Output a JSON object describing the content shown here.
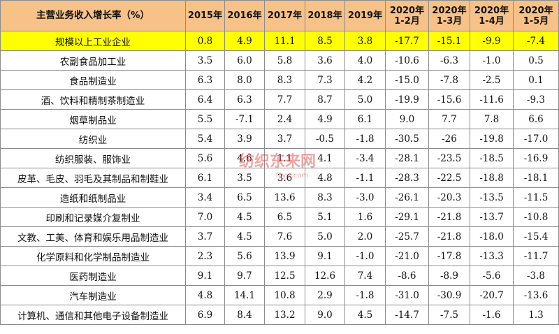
{
  "header": {
    "label": "主营业务收入增长率（%）",
    "columns": [
      {
        "line1": "2015年",
        "line2": ""
      },
      {
        "line1": "2016年",
        "line2": ""
      },
      {
        "line1": "2017年",
        "line2": ""
      },
      {
        "line1": "2018年",
        "line2": ""
      },
      {
        "line1": "2019年",
        "line2": ""
      },
      {
        "line1": "2020年",
        "line2": "1-2月"
      },
      {
        "line1": "2020年",
        "line2": "1-3月"
      },
      {
        "line1": "2020年",
        "line2": "1-4月"
      },
      {
        "line1": "2020年",
        "line2": "1-5月"
      }
    ]
  },
  "rows": [
    {
      "name": "规模以上工业企业",
      "values": [
        "0.8",
        "4.9",
        "11.1",
        "8.5",
        "3.8",
        "-17.7",
        "-15.1",
        "-9.9",
        "-7.4"
      ]
    },
    {
      "name": "农副食品加工业",
      "values": [
        "3.5",
        "6.0",
        "5.8",
        "3.6",
        "4.0",
        "-10.6",
        "-6.3",
        "-1.0",
        "0.5"
      ]
    },
    {
      "name": "食品制造业",
      "values": [
        "6.3",
        "8.0",
        "8.3",
        "7.3",
        "4.2",
        "-15.0",
        "-7.8",
        "-2.5",
        "0.1"
      ]
    },
    {
      "name": "酒、饮料和精制茶制造业",
      "values": [
        "6.4",
        "6.3",
        "7.7",
        "8.7",
        "5.0",
        "-19.9",
        "-15.6",
        "-11.6",
        "-9.3"
      ]
    },
    {
      "name": "烟草制品业",
      "values": [
        "5.5",
        "-7.1",
        "2.4",
        "4.9",
        "6.1",
        "9.0",
        "7.7",
        "7.8",
        "6.6"
      ]
    },
    {
      "name": "纺织业",
      "values": [
        "5.4",
        "3.9",
        "3.7",
        "-0.5",
        "-1.8",
        "-30.5",
        "-26",
        "-19.8",
        "-17.0"
      ]
    },
    {
      "name": "纺织服装、服饰业",
      "values": [
        "5.6",
        "4.6",
        "1.1",
        "4.1",
        "-3.4",
        "-28.1",
        "-23.5",
        "-18.5",
        "-16.9"
      ]
    },
    {
      "name": "皮革、毛皮、羽毛及其制品和制鞋业",
      "values": [
        "6.1",
        "3.5",
        "3.6",
        "4.8",
        "-1.1",
        "-28.3",
        "-22.5",
        "-18.8",
        "-18.1"
      ]
    },
    {
      "name": "造纸和纸制品业",
      "values": [
        "3.4",
        "6.5",
        "13.6",
        "8.3",
        "-3.0",
        "-26.1",
        "-20.3",
        "-13.5",
        "-11.5"
      ]
    },
    {
      "name": "印刷和记录媒介复制业",
      "values": [
        "7.0",
        "4.5",
        "6.5",
        "5.1",
        "1.6",
        "-29.1",
        "-21.8",
        "-13.7",
        "-10.8"
      ]
    },
    {
      "name": "文教、工美、体育和娱乐用品制造业",
      "values": [
        "3.7",
        "4.5",
        "7.6",
        "5.0",
        "2.0",
        "-25.7",
        "-21.8",
        "-18.0",
        "-15.4"
      ]
    },
    {
      "name": "化学原料和化学制品制造业",
      "values": [
        "2.3",
        "5.6",
        "13.9",
        "9.1",
        "-1.0",
        "-21.0",
        "-17.8",
        "-13.3",
        "-11.7"
      ]
    },
    {
      "name": "医药制造业",
      "values": [
        "9.1",
        "9.7",
        "12.5",
        "12.6",
        "7.4",
        "-8.6",
        "-8.9",
        "-5.6",
        "-3.8"
      ]
    },
    {
      "name": "汽车制造业",
      "values": [
        "4.8",
        "14.1",
        "10.8",
        "2.9",
        "-1.8",
        "-31.0",
        "-30.9",
        "-20.7",
        "-13.6"
      ]
    },
    {
      "name": "计算机、通信和其他电子设备制造业",
      "values": [
        "6.9",
        "8.4",
        "13.2",
        "9.0",
        "4.5",
        "-14.7",
        "-7.5",
        "-1.6",
        "1.3"
      ]
    }
  ],
  "watermark": {
    "line1": "纺织东来网",
    "line2": "fzyw.com"
  },
  "colors": {
    "header_bg": "#f7c287",
    "total_row_bg": "#ffff00",
    "watermark": "#e03a3a"
  }
}
